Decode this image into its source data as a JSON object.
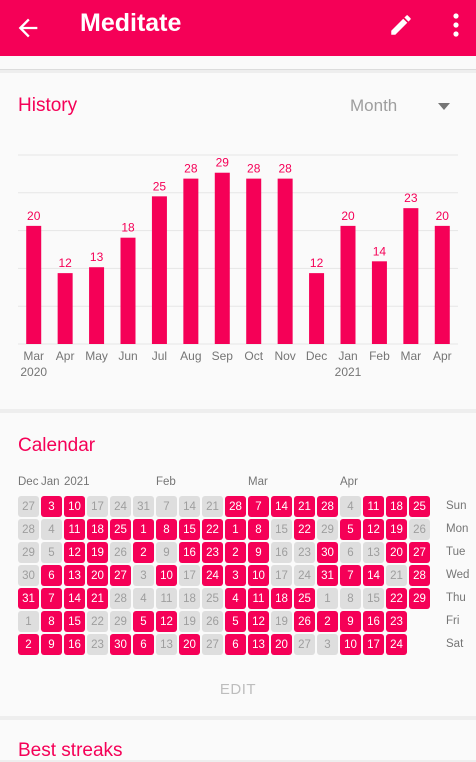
{
  "appbar": {
    "title": "Meditate",
    "back_icon": "arrow-back-icon",
    "edit_icon": "pencil-icon",
    "more_icon": "more-vert-icon",
    "color": "#f50057"
  },
  "history": {
    "title": "History",
    "period_select": {
      "value": "Month"
    }
  },
  "chart_data": {
    "type": "bar",
    "categories": [
      "Mar",
      "Apr",
      "May",
      "Jun",
      "Jul",
      "Aug",
      "Sep",
      "Oct",
      "Nov",
      "Dec",
      "Jan",
      "Feb",
      "Mar",
      "Apr"
    ],
    "year_labels": [
      {
        "index": 0,
        "label": "2020"
      },
      {
        "index": 10,
        "label": "2021"
      }
    ],
    "values": [
      20,
      12,
      13,
      18,
      25,
      28,
      29,
      28,
      28,
      12,
      20,
      14,
      23,
      20
    ],
    "ylim": [
      0,
      32
    ],
    "grid": true,
    "color": "#f50057"
  },
  "calendar": {
    "title": "Calendar",
    "months": [
      {
        "label": "Dec",
        "col": 0
      },
      {
        "label": "Jan",
        "col": 1
      },
      {
        "label": "2021",
        "col": 2
      },
      {
        "label": "Feb",
        "col": 6
      },
      {
        "label": "Mar",
        "col": 10
      },
      {
        "label": "Apr",
        "col": 14
      }
    ],
    "weekdays": [
      "Sun",
      "Mon",
      "Tue",
      "Wed",
      "Thu",
      "Fri",
      "Sat"
    ],
    "columns": [
      [
        [
          27,
          0
        ],
        [
          28,
          0
        ],
        [
          29,
          0
        ],
        [
          30,
          0
        ],
        [
          31,
          1
        ],
        [
          1,
          0
        ],
        [
          2,
          1
        ]
      ],
      [
        [
          3,
          1
        ],
        [
          4,
          0
        ],
        [
          5,
          0
        ],
        [
          6,
          1
        ],
        [
          7,
          1
        ],
        [
          8,
          1
        ],
        [
          9,
          1
        ]
      ],
      [
        [
          10,
          1
        ],
        [
          11,
          1
        ],
        [
          12,
          1
        ],
        [
          13,
          1
        ],
        [
          14,
          1
        ],
        [
          15,
          1
        ],
        [
          16,
          1
        ]
      ],
      [
        [
          17,
          0
        ],
        [
          18,
          1
        ],
        [
          19,
          1
        ],
        [
          20,
          1
        ],
        [
          21,
          1
        ],
        [
          22,
          0
        ],
        [
          23,
          0
        ]
      ],
      [
        [
          24,
          0
        ],
        [
          25,
          1
        ],
        [
          26,
          0
        ],
        [
          27,
          1
        ],
        [
          28,
          0
        ],
        [
          29,
          0
        ],
        [
          30,
          1
        ]
      ],
      [
        [
          31,
          0
        ],
        [
          1,
          1
        ],
        [
          2,
          1
        ],
        [
          3,
          0
        ],
        [
          4,
          0
        ],
        [
          5,
          1
        ],
        [
          6,
          1
        ]
      ],
      [
        [
          7,
          0
        ],
        [
          8,
          1
        ],
        [
          9,
          0
        ],
        [
          10,
          1
        ],
        [
          11,
          0
        ],
        [
          12,
          1
        ],
        [
          13,
          0
        ]
      ],
      [
        [
          14,
          0
        ],
        [
          15,
          1
        ],
        [
          16,
          1
        ],
        [
          17,
          0
        ],
        [
          18,
          0
        ],
        [
          19,
          0
        ],
        [
          20,
          1
        ]
      ],
      [
        [
          21,
          0
        ],
        [
          22,
          1
        ],
        [
          23,
          1
        ],
        [
          24,
          1
        ],
        [
          25,
          0
        ],
        [
          26,
          0
        ],
        [
          27,
          0
        ]
      ],
      [
        [
          28,
          1
        ],
        [
          1,
          1
        ],
        [
          2,
          1
        ],
        [
          3,
          1
        ],
        [
          4,
          1
        ],
        [
          5,
          1
        ],
        [
          6,
          1
        ]
      ],
      [
        [
          7,
          1
        ],
        [
          8,
          1
        ],
        [
          9,
          1
        ],
        [
          10,
          1
        ],
        [
          11,
          1
        ],
        [
          12,
          1
        ],
        [
          13,
          1
        ]
      ],
      [
        [
          14,
          1
        ],
        [
          15,
          0
        ],
        [
          16,
          0
        ],
        [
          17,
          0
        ],
        [
          18,
          1
        ],
        [
          19,
          0
        ],
        [
          20,
          1
        ]
      ],
      [
        [
          21,
          1
        ],
        [
          22,
          1
        ],
        [
          23,
          0
        ],
        [
          24,
          0
        ],
        [
          25,
          1
        ],
        [
          26,
          1
        ],
        [
          27,
          0
        ]
      ],
      [
        [
          28,
          1
        ],
        [
          29,
          0
        ],
        [
          30,
          1
        ],
        [
          31,
          1
        ],
        [
          1,
          0
        ],
        [
          2,
          1
        ],
        [
          3,
          0
        ]
      ],
      [
        [
          4,
          0
        ],
        [
          5,
          1
        ],
        [
          6,
          0
        ],
        [
          7,
          1
        ],
        [
          8,
          0
        ],
        [
          9,
          1
        ],
        [
          10,
          1
        ]
      ],
      [
        [
          11,
          1
        ],
        [
          12,
          1
        ],
        [
          13,
          0
        ],
        [
          14,
          1
        ],
        [
          15,
          0
        ],
        [
          16,
          1
        ],
        [
          17,
          1
        ]
      ],
      [
        [
          18,
          1
        ],
        [
          19,
          1
        ],
        [
          20,
          1
        ],
        [
          21,
          0
        ],
        [
          22,
          1
        ],
        [
          23,
          1
        ],
        [
          24,
          1
        ]
      ],
      [
        [
          25,
          1
        ],
        [
          26,
          0
        ],
        [
          27,
          1
        ],
        [
          28,
          1
        ],
        [
          29,
          1
        ]
      ]
    ],
    "edit_label": "EDIT"
  },
  "streaks": {
    "title": "Best streaks"
  }
}
